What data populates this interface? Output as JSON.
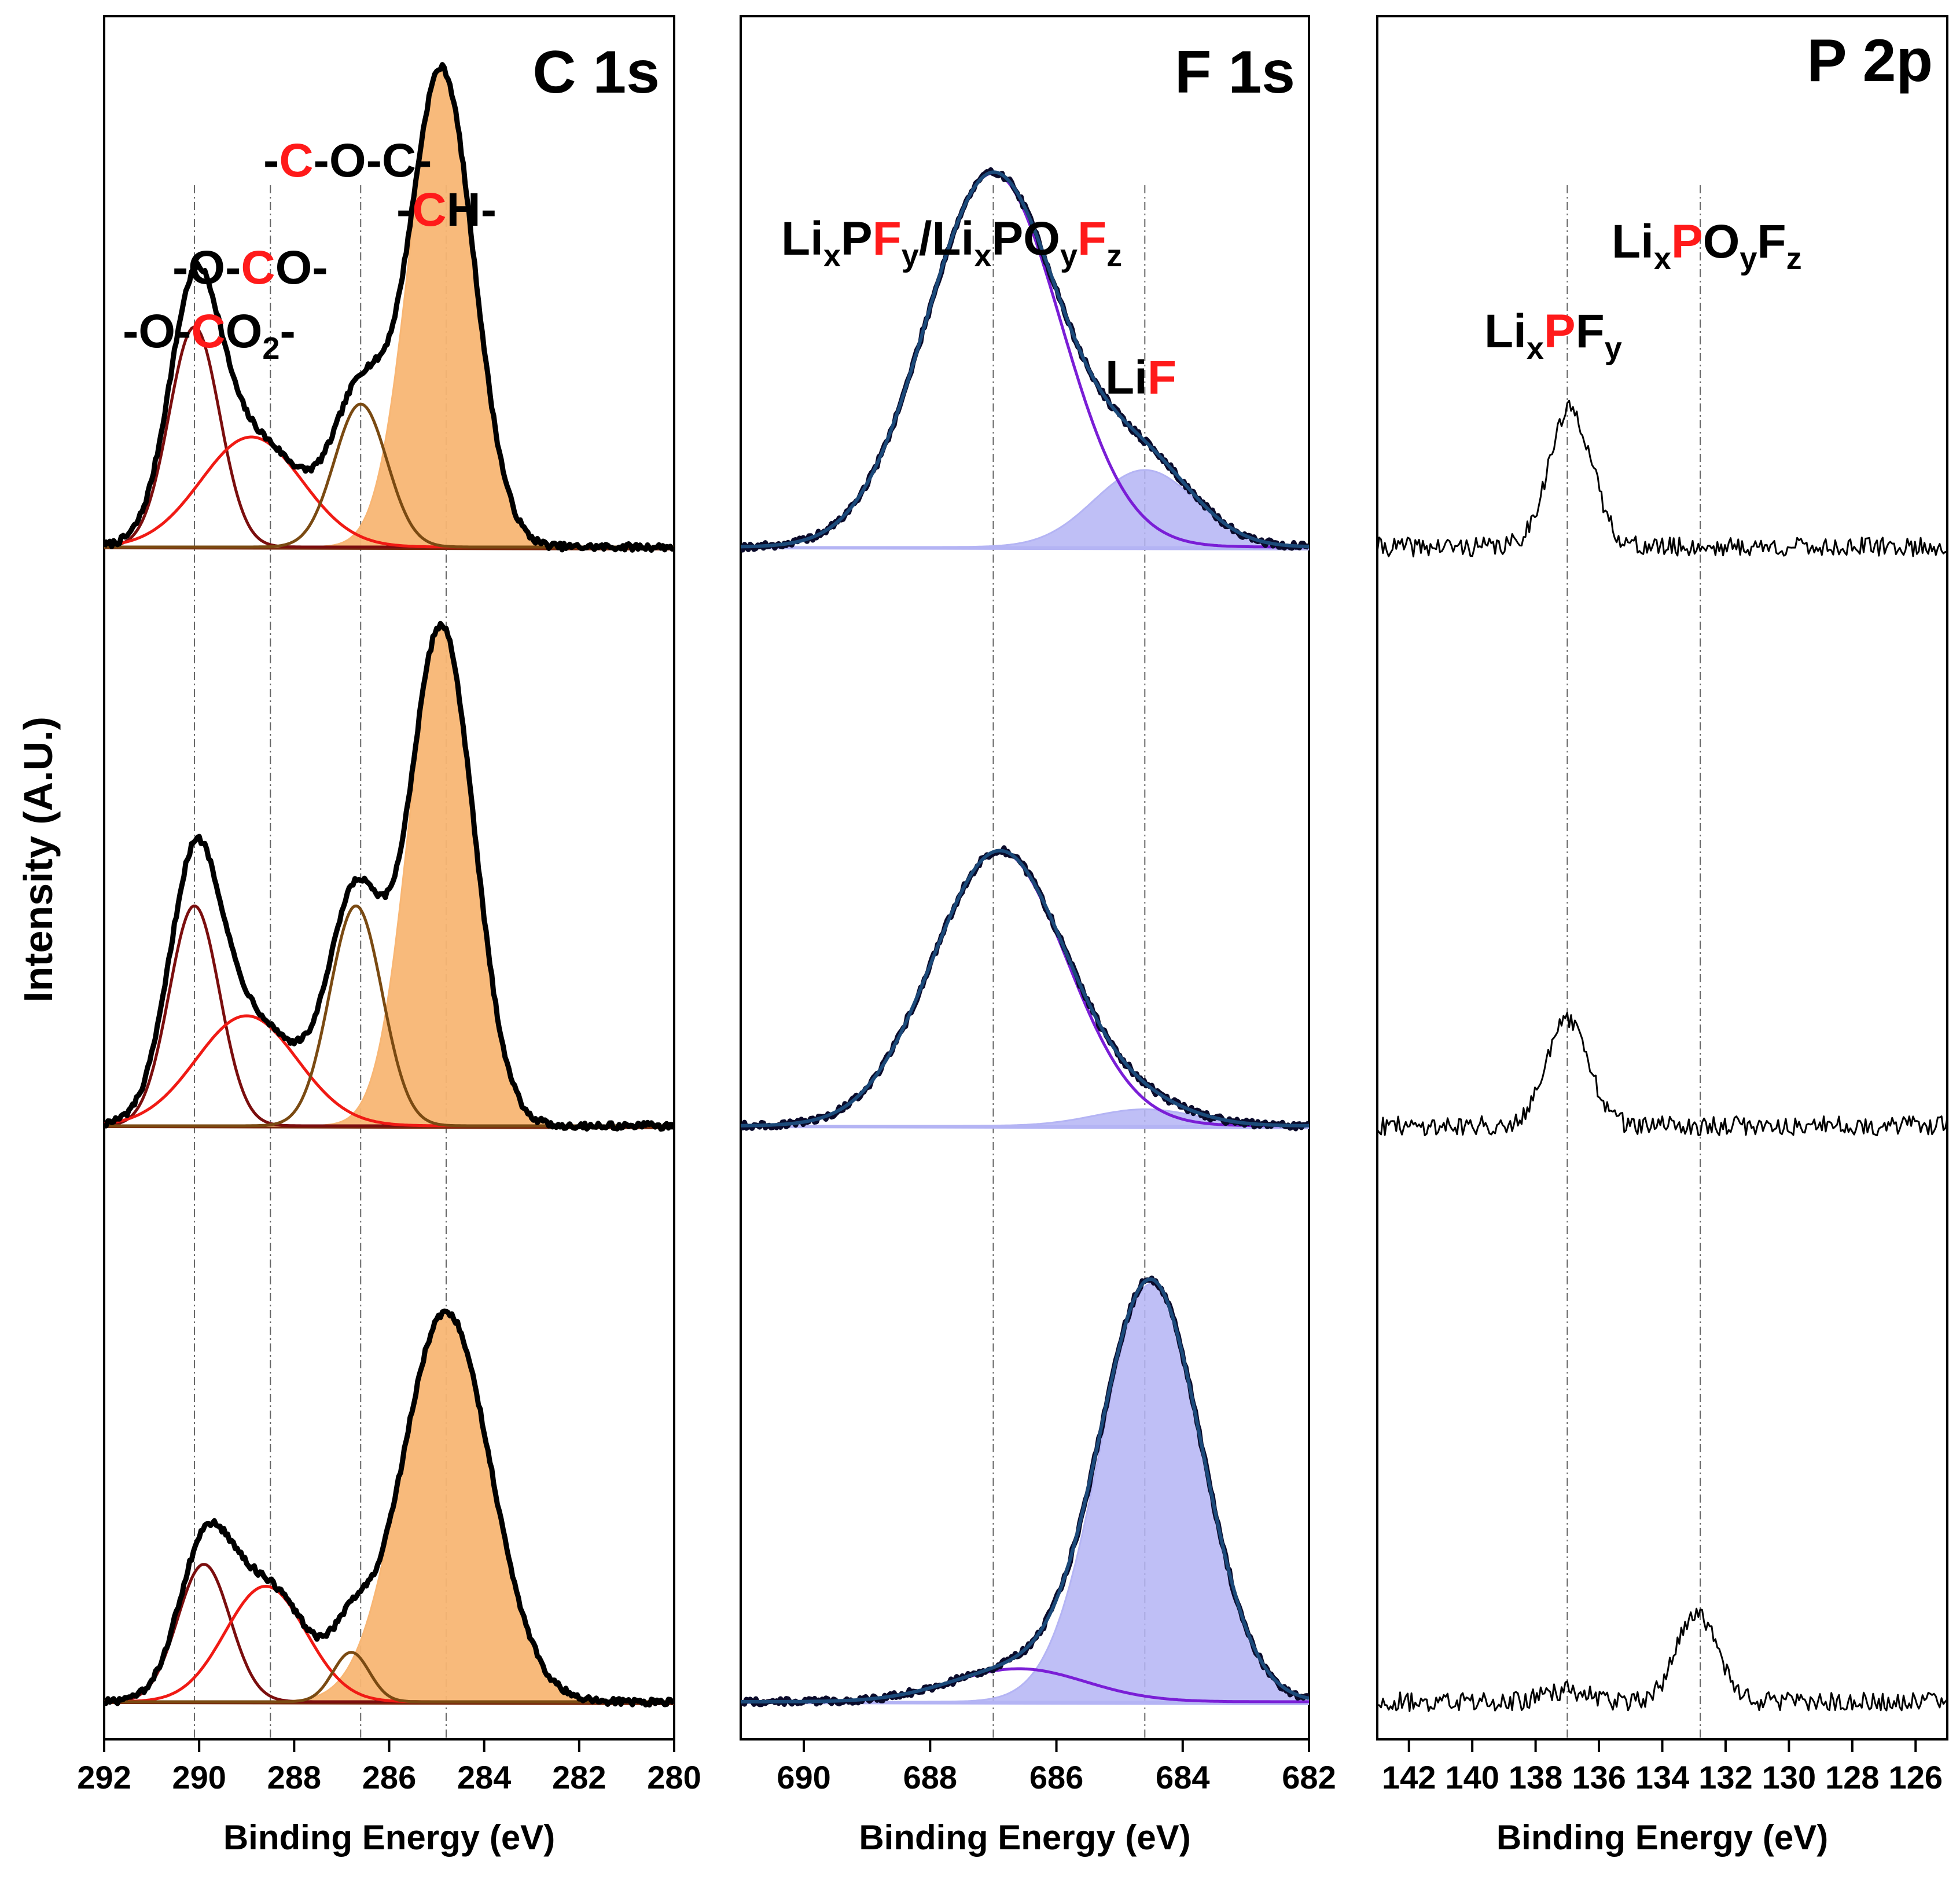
{
  "figure": {
    "ylabel": "Intensity (A.U.)",
    "colors": {
      "c_data": "#000000",
      "c_ooco2": "#7b0e0e",
      "c_ooco": "#f01a14",
      "c_coc": "#7a4a12",
      "c_ch_fill": "#f8b674",
      "c_background": "#7a2a0e",
      "f_data": "#0a0a2a",
      "f_envelope": "#1b4a7a",
      "f_lipf": "#7a1ed6",
      "f_lif_fill": "#b4b4f4",
      "f_background": "#b4b4f4",
      "p_data": "#000000",
      "highlight": "#ff1a1a",
      "ref_line": "#666666"
    }
  },
  "chart_data": [
    {
      "id": "c1s",
      "type": "line",
      "title": "C 1s",
      "xlabel": "Binding Energy (eV)",
      "ylabel": "Intensity (A.U.)",
      "xlim": [
        292,
        280
      ],
      "x_reversed": true,
      "x_ticks": [
        292,
        290,
        288,
        286,
        284,
        282,
        280
      ],
      "tick_labels": [
        "292",
        "290",
        "288",
        "286",
        "284",
        "282",
        "280"
      ],
      "reference_lines_ev": [
        290.1,
        288.5,
        286.6,
        284.8
      ],
      "peak_labels": [
        {
          "segments": [
            {
              "t": "-O-"
            },
            {
              "t": "C",
              "hl": true
            },
            {
              "t": "O"
            },
            {
              "t": "2",
              "sub": true
            },
            {
              "t": "-"
            }
          ]
        },
        {
          "segments": [
            {
              "t": "-O-"
            },
            {
              "t": "C",
              "hl": true
            },
            {
              "t": "O-"
            }
          ]
        },
        {
          "segments": [
            {
              "t": "-"
            },
            {
              "t": "C",
              "hl": true
            },
            {
              "t": "-O-C-"
            }
          ]
        },
        {
          "segments": [
            {
              "t": "-"
            },
            {
              "t": "C",
              "hl": true
            },
            {
              "t": "H-"
            }
          ]
        }
      ],
      "stacks": [
        {
          "order": "top",
          "peaks": [
            {
              "name": "-O-CO2-",
              "center": 290.1,
              "height": 0.4,
              "fwhm": 1.25
            },
            {
              "name": "-O-CO-",
              "center": 288.9,
              "height": 0.2,
              "fwhm": 2.5
            },
            {
              "name": "-C-O-C-",
              "center": 286.6,
              "height": 0.26,
              "fwhm": 1.3
            },
            {
              "name": "-CH-",
              "center": 284.9,
              "height": 0.87,
              "fwhm": 1.6
            }
          ]
        },
        {
          "order": "middle",
          "peaks": [
            {
              "name": "-O-CO2-",
              "center": 290.1,
              "height": 0.4,
              "fwhm": 1.25
            },
            {
              "name": "-O-CO-",
              "center": 289.0,
              "height": 0.2,
              "fwhm": 2.5
            },
            {
              "name": "-C-O-C-",
              "center": 286.7,
              "height": 0.4,
              "fwhm": 1.3
            },
            {
              "name": "-CH-",
              "center": 284.9,
              "height": 0.91,
              "fwhm": 1.6
            }
          ]
        },
        {
          "order": "bottom",
          "peaks": [
            {
              "name": "-O-CO2-",
              "center": 289.9,
              "height": 0.25,
              "fwhm": 1.3
            },
            {
              "name": "-O-CO-",
              "center": 288.6,
              "height": 0.21,
              "fwhm": 2.0
            },
            {
              "name": "-C-O-C-",
              "center": 286.8,
              "height": 0.09,
              "fwhm": 0.9
            },
            {
              "name": "-CH-",
              "center": 284.8,
              "height": 0.71,
              "fwhm": 2.2
            }
          ]
        }
      ]
    },
    {
      "id": "f1s",
      "type": "line",
      "title": "F 1s",
      "xlabel": "Binding Energy (eV)",
      "xlim": [
        691,
        682
      ],
      "x_reversed": true,
      "x_ticks": [
        690,
        688,
        686,
        684,
        682
      ],
      "tick_labels": [
        "690",
        "688",
        "686",
        "684",
        "682"
      ],
      "reference_lines_ev": [
        687.0,
        684.6
      ],
      "peak_labels": [
        {
          "segments": [
            {
              "t": "Li"
            },
            {
              "t": "x",
              "sub": true
            },
            {
              "t": "P"
            },
            {
              "t": "F",
              "hl": true
            },
            {
              "t": "y",
              "sub": true
            },
            {
              "t": "/Li"
            },
            {
              "t": "x",
              "sub": true
            },
            {
              "t": "PO"
            },
            {
              "t": "y",
              "sub": true
            },
            {
              "t": "F",
              "hl": true
            },
            {
              "t": "z",
              "sub": true
            }
          ]
        },
        {
          "segments": [
            {
              "t": "Li"
            },
            {
              "t": "F",
              "hl": true
            }
          ]
        }
      ],
      "stacks": [
        {
          "order": "top",
          "peaks": [
            {
              "name": "LixPFy/LixPOyFz",
              "center": 687.0,
              "height": 0.68,
              "fwhm": 2.5
            },
            {
              "name": "LiF",
              "center": 684.6,
              "height": 0.14,
              "fwhm": 1.9
            }
          ]
        },
        {
          "order": "middle",
          "peaks": [
            {
              "name": "LixPFy/LixPOyFz",
              "center": 686.9,
              "height": 0.5,
              "fwhm": 2.5
            },
            {
              "name": "LiF",
              "center": 684.6,
              "height": 0.03,
              "fwhm": 1.9
            }
          ]
        },
        {
          "order": "bottom",
          "peaks": [
            {
              "name": "LixPFy/LixPOyFz",
              "center": 686.6,
              "height": 0.06,
              "fwhm": 2.5
            },
            {
              "name": "LiF",
              "center": 684.5,
              "height": 0.76,
              "fwhm": 1.9
            }
          ]
        }
      ]
    },
    {
      "id": "p2p",
      "type": "line",
      "title": "P 2p",
      "xlabel": "Binding Energy (eV)",
      "xlim": [
        143,
        125
      ],
      "x_reversed": true,
      "x_ticks": [
        142,
        140,
        138,
        136,
        134,
        132,
        130,
        128,
        126
      ],
      "tick_labels": [
        "142",
        "140",
        "138",
        "136",
        "134",
        "132",
        "130",
        "128",
        "126"
      ],
      "reference_lines_ev": [
        137.0,
        132.8
      ],
      "peak_labels": [
        {
          "segments": [
            {
              "t": "Li"
            },
            {
              "t": "x",
              "sub": true
            },
            {
              "t": "P",
              "hl": true
            },
            {
              "t": "O"
            },
            {
              "t": "y",
              "sub": true
            },
            {
              "t": "F"
            },
            {
              "t": "z",
              "sub": true
            }
          ]
        },
        {
          "segments": [
            {
              "t": "Li"
            },
            {
              "t": "x",
              "sub": true
            },
            {
              "t": "P",
              "hl": true
            },
            {
              "t": "F"
            },
            {
              "t": "y",
              "sub": true
            }
          ]
        }
      ],
      "stacks": [
        {
          "order": "top",
          "peaks": [
            {
              "name": "LixPFy",
              "center": 136.9,
              "height": 0.25,
              "fwhm": 1.6
            },
            {
              "name": "LixPOyFz",
              "center": 132.8,
              "height": 0.0,
              "fwhm": 1.5
            }
          ]
        },
        {
          "order": "middle",
          "peaks": [
            {
              "name": "LixPFy",
              "center": 137.0,
              "height": 0.19,
              "fwhm": 1.6
            },
            {
              "name": "LixPOyFz",
              "center": 132.8,
              "height": 0.0,
              "fwhm": 1.5
            }
          ]
        },
        {
          "order": "bottom",
          "peaks": [
            {
              "name": "LixPFy",
              "center": 137.0,
              "height": 0.02,
              "fwhm": 1.6
            },
            {
              "name": "LixPOyFz",
              "center": 132.9,
              "height": 0.16,
              "fwhm": 1.5
            }
          ]
        }
      ]
    }
  ]
}
